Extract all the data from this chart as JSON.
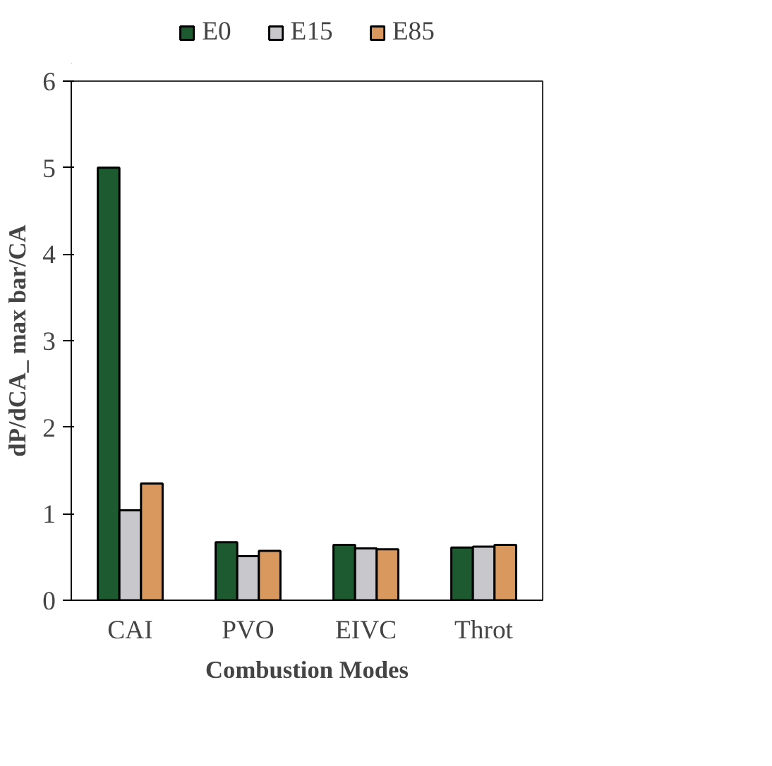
{
  "chart_data": {
    "type": "bar",
    "xlabel": "Combustion Modes",
    "ylabel": "dP/dCA_ max bar/CA",
    "categories": [
      "CAI",
      "PVO",
      "EIVC",
      "Throt"
    ],
    "series": [
      {
        "name": "E0",
        "color": "#1e5a30",
        "values": [
          5.0,
          0.67,
          0.64,
          0.61
        ]
      },
      {
        "name": "E15",
        "color": "#c8c8cc",
        "values": [
          1.04,
          0.51,
          0.6,
          0.62
        ]
      },
      {
        "name": "E85",
        "color": "#d9995e",
        "values": [
          1.35,
          0.57,
          0.59,
          0.64
        ]
      }
    ],
    "ylim": [
      0,
      6
    ],
    "yticks": [
      0,
      1,
      2,
      3,
      4,
      5,
      6
    ],
    "grid": false,
    "legend": "top"
  }
}
